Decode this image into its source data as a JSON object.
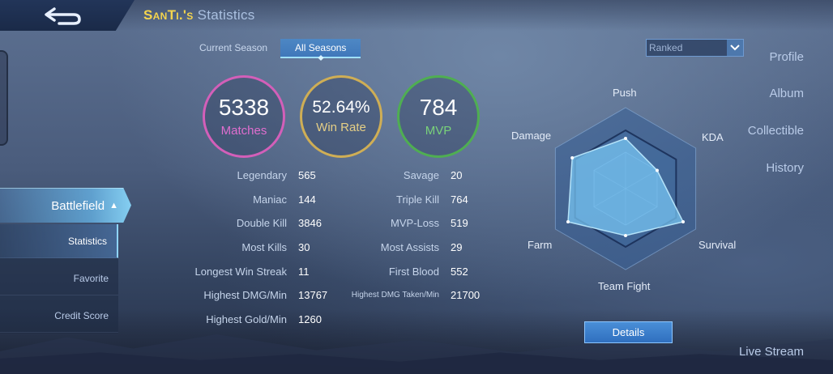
{
  "header": {
    "player_name": "SanTi.'s",
    "title_suffix": "Statistics"
  },
  "sidebar": {
    "items": [
      {
        "label": "Profile"
      },
      {
        "label": "Album"
      },
      {
        "label": "Collectible"
      },
      {
        "label": "History"
      },
      {
        "label": "Battlefield"
      },
      {
        "label": "Live Stream"
      }
    ],
    "sub_items": [
      {
        "label": "Statistics",
        "active": true
      },
      {
        "label": "Favorite"
      },
      {
        "label": "Credit Score"
      }
    ]
  },
  "tabs": [
    "Current Season",
    "All Seasons"
  ],
  "active_tab": "All Seasons",
  "filter": {
    "selected": "Ranked"
  },
  "summary": {
    "matches": {
      "value": "5338",
      "label": "Matches"
    },
    "win_rate": {
      "value": "52.64%",
      "label": "Win Rate"
    },
    "mvp": {
      "value": "784",
      "label": "MVP"
    }
  },
  "stats_left": [
    {
      "label": "Legendary",
      "value": "565"
    },
    {
      "label": "Maniac",
      "value": "144"
    },
    {
      "label": "Double Kill",
      "value": "3846"
    },
    {
      "label": "Most Kills",
      "value": "30"
    },
    {
      "label": "Longest Win Streak",
      "value": "11"
    },
    {
      "label": "Highest DMG/Min",
      "value": "13767"
    },
    {
      "label": "Highest Gold/Min",
      "value": "1260"
    }
  ],
  "stats_right": [
    {
      "label": "Savage",
      "value": "20"
    },
    {
      "label": "Triple Kill",
      "value": "764"
    },
    {
      "label": "MVP-Loss",
      "value": "519"
    },
    {
      "label": "Most Assists",
      "value": "29"
    },
    {
      "label": "First Blood",
      "value": "552"
    },
    {
      "label": "Highest DMG Taken/Min",
      "value": "21700"
    }
  ],
  "radar": {
    "axes": [
      "Push",
      "KDA",
      "Survival",
      "Team Fight",
      "Farm",
      "Damage"
    ],
    "values": [
      0.62,
      0.45,
      0.82,
      0.58,
      0.82,
      0.76
    ]
  },
  "details_label": "Details",
  "colors": {
    "accent": "#4a8fd8",
    "name": "#f4d44d",
    "matches": "#d35fb9",
    "win_rate": "#cfae55",
    "mvp": "#4fae52"
  }
}
